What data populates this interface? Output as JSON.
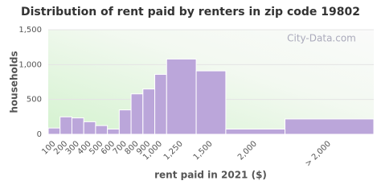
{
  "chart_data": {
    "type": "histogram",
    "title": "Distribution of rent paid by renters in zip code 19802",
    "x_label": "rent paid in 2021 ($)",
    "y_label": "households",
    "watermark": "City-Data.com",
    "categories": [
      "100",
      "200",
      "300",
      "400",
      "500",
      "600",
      "700",
      "800",
      "900",
      "1,000",
      "1,250",
      "1,500",
      "2,000",
      "> 2,000"
    ],
    "bins": [
      0,
      100,
      200,
      300,
      400,
      500,
      600,
      700,
      800,
      900,
      1000,
      1250,
      1500,
      2000,
      2750
    ],
    "values": [
      90,
      250,
      235,
      180,
      125,
      75,
      350,
      580,
      650,
      860,
      1080,
      910,
      75,
      220
    ],
    "color": "#bba6da",
    "xlim": [
      0,
      2750
    ],
    "ylim": [
      0,
      1500
    ],
    "yticks": [
      0,
      500,
      {
        "value": 1000,
        "label": "1,000"
      },
      {
        "value": 1500,
        "label": "1,500"
      }
    ],
    "grid": true
  }
}
